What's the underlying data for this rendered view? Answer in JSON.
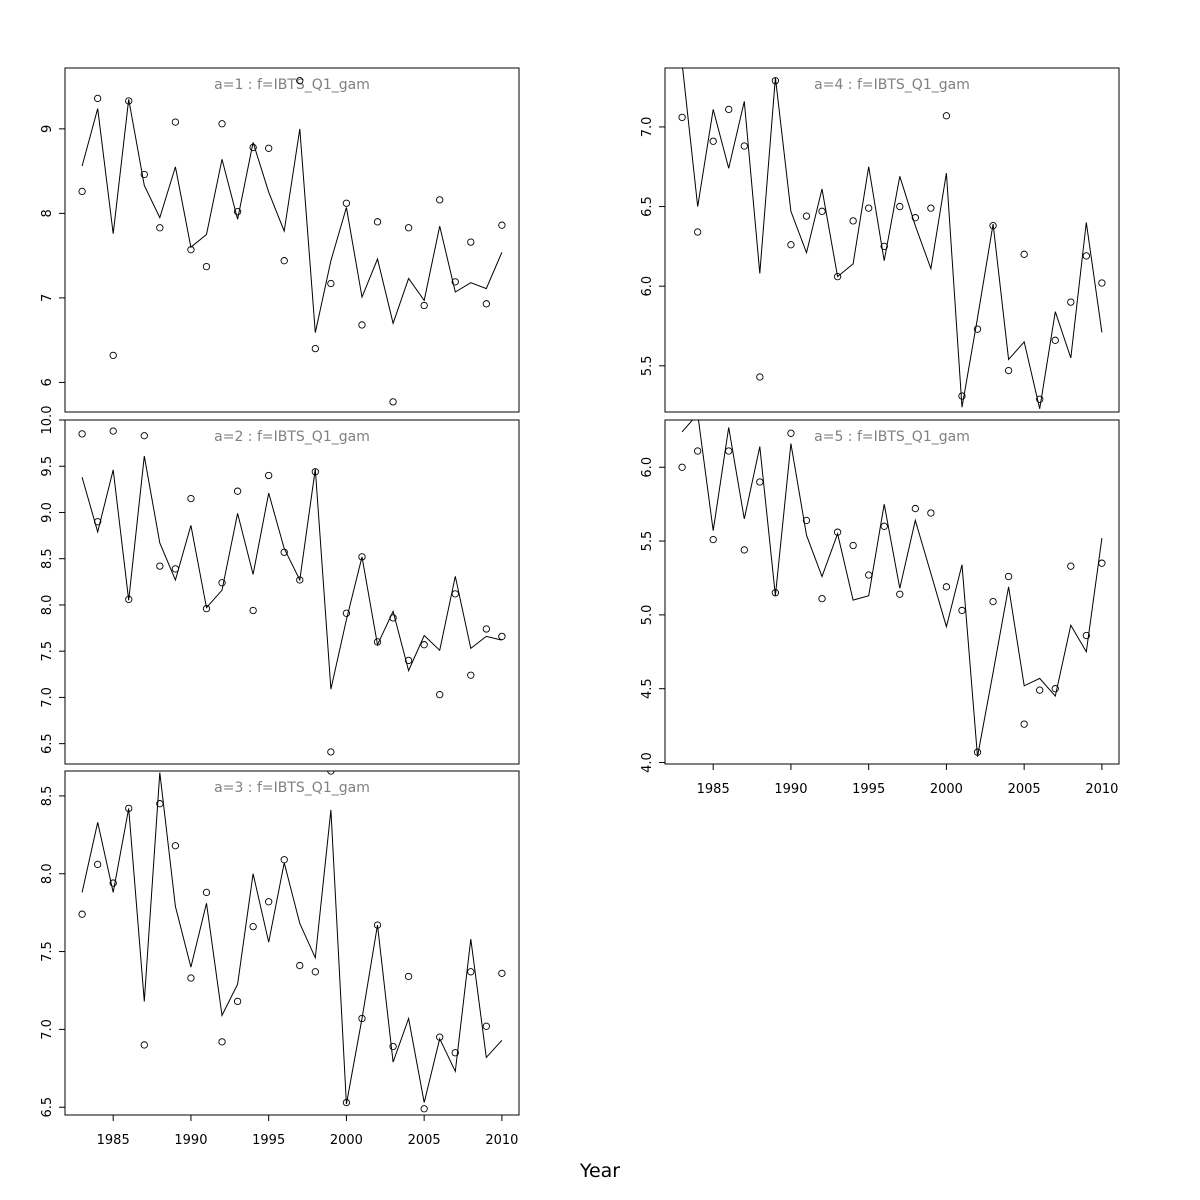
{
  "figure": {
    "xlabel": "Year",
    "background": "#ffffff",
    "panel_title_color": "#808080",
    "line_color": "#000000"
  },
  "chart_data": [
    {
      "type": "scatter",
      "panel": "a1",
      "title": "a=1 : f=IBTS_Q1_gam",
      "x": [
        1983,
        1984,
        1985,
        1986,
        1987,
        1988,
        1989,
        1990,
        1991,
        1992,
        1993,
        1994,
        1995,
        1996,
        1997,
        1998,
        1999,
        2000,
        2001,
        2002,
        2003,
        2004,
        2005,
        2006,
        2007,
        2008,
        2009,
        2010
      ],
      "series": [
        {
          "values": [
            8.26,
            9.36,
            6.32,
            9.33,
            8.46,
            7.83,
            9.08,
            7.57,
            7.37,
            9.06,
            8.02,
            8.78,
            8.77,
            7.44,
            9.57,
            6.4,
            7.17,
            8.12,
            6.68,
            7.9,
            5.77,
            7.83,
            6.91,
            8.16,
            7.19,
            7.66,
            6.93,
            7.86
          ]
        },
        {
          "values": [
            8.56,
            9.24,
            7.76,
            9.35,
            8.33,
            7.95,
            8.55,
            7.6,
            7.75,
            8.64,
            7.93,
            8.84,
            8.25,
            7.79,
            9.0,
            6.59,
            7.44,
            8.07,
            7.01,
            7.46,
            6.7,
            7.23,
            6.97,
            7.85,
            7.07,
            7.18,
            7.11,
            7.54
          ]
        }
      ],
      "ylim": [
        5.65,
        9.72
      ],
      "yticks": [
        6,
        7,
        8,
        9
      ],
      "show_xaxis": false
    },
    {
      "type": "scatter",
      "panel": "a2",
      "title": "a=2 : f=IBTS_Q1_gam",
      "x": [
        1983,
        1984,
        1985,
        1986,
        1987,
        1988,
        1989,
        1990,
        1991,
        1992,
        1993,
        1994,
        1995,
        1996,
        1997,
        1998,
        1999,
        2000,
        2001,
        2002,
        2003,
        2004,
        2005,
        2006,
        2007,
        2008,
        2009,
        2010
      ],
      "series": [
        {
          "values": [
            9.85,
            8.9,
            9.88,
            8.06,
            9.83,
            8.42,
            8.39,
            9.15,
            7.96,
            8.24,
            9.23,
            7.94,
            9.4,
            8.57,
            8.27,
            9.44,
            6.41,
            7.91,
            8.52,
            7.6,
            7.86,
            7.4,
            7.57,
            7.03,
            8.12,
            7.24,
            7.74,
            7.66
          ]
        },
        {
          "values": [
            9.38,
            8.79,
            9.46,
            8.05,
            9.61,
            8.67,
            8.27,
            8.86,
            7.97,
            8.16,
            8.99,
            8.33,
            9.21,
            8.61,
            8.27,
            9.47,
            7.09,
            7.84,
            8.52,
            7.57,
            7.93,
            7.29,
            7.67,
            7.51,
            8.31,
            7.53,
            7.66,
            7.62
          ]
        }
      ],
      "ylim": [
        6.28,
        10.0
      ],
      "yticks": [
        6.5,
        7.0,
        7.5,
        8.0,
        8.5,
        9.0,
        9.5,
        10.0
      ],
      "show_xaxis": false
    },
    {
      "type": "scatter",
      "panel": "a3",
      "title": "a=3 : f=IBTS_Q1_gam",
      "x": [
        1983,
        1984,
        1985,
        1986,
        1987,
        1988,
        1989,
        1990,
        1991,
        1992,
        1993,
        1994,
        1995,
        1996,
        1997,
        1998,
        1999,
        2000,
        2001,
        2002,
        2003,
        2004,
        2005,
        2006,
        2007,
        2008,
        2009,
        2010
      ],
      "series": [
        {
          "values": [
            7.74,
            8.06,
            7.94,
            8.42,
            6.9,
            8.45,
            8.18,
            7.33,
            7.88,
            6.92,
            7.18,
            7.66,
            7.82,
            8.09,
            7.41,
            7.37,
            8.66,
            6.53,
            7.07,
            7.67,
            6.89,
            7.34,
            6.49,
            6.95,
            6.85,
            7.37,
            7.02,
            7.36
          ]
        },
        {
          "values": [
            7.88,
            8.33,
            7.88,
            8.42,
            7.18,
            8.65,
            7.79,
            7.4,
            7.81,
            7.09,
            7.29,
            8.0,
            7.56,
            8.07,
            7.68,
            7.46,
            8.41,
            6.52,
            7.07,
            7.67,
            6.79,
            7.07,
            6.53,
            6.94,
            6.73,
            7.58,
            6.82,
            6.93
          ]
        }
      ],
      "ylim": [
        6.45,
        8.66
      ],
      "yticks": [
        6.5,
        7.0,
        7.5,
        8.0,
        8.5
      ],
      "xticks": [
        1985,
        1990,
        1995,
        2000,
        2005,
        2010
      ],
      "show_xaxis": true
    },
    {
      "type": "scatter",
      "panel": "a4",
      "title": "a=4 : f=IBTS_Q1_gam",
      "x": [
        1983,
        1984,
        1985,
        1986,
        1987,
        1988,
        1989,
        1990,
        1991,
        1992,
        1993,
        1994,
        1995,
        1996,
        1997,
        1998,
        1999,
        2000,
        2001,
        2002,
        2003,
        2004,
        2005,
        2006,
        2007,
        2008,
        2009,
        2010
      ],
      "series": [
        {
          "values": [
            7.06,
            6.34,
            6.91,
            7.11,
            6.88,
            5.43,
            7.29,
            6.26,
            6.44,
            6.47,
            6.06,
            6.41,
            6.49,
            6.25,
            6.5,
            6.43,
            6.49,
            7.07,
            5.31,
            5.73,
            6.38,
            5.47,
            6.2,
            5.29,
            5.66,
            5.9,
            6.19,
            6.02
          ]
        },
        {
          "values": [
            7.4,
            6.5,
            7.11,
            6.74,
            7.16,
            6.08,
            7.31,
            6.47,
            6.21,
            6.61,
            6.06,
            6.14,
            6.75,
            6.16,
            6.69,
            6.38,
            6.11,
            6.71,
            5.24,
            5.8,
            6.39,
            5.54,
            5.65,
            5.23,
            5.84,
            5.55,
            6.4,
            5.71
          ]
        }
      ],
      "ylim": [
        5.21,
        7.37
      ],
      "yticks": [
        5.5,
        6.0,
        6.5,
        7.0
      ],
      "show_xaxis": false
    },
    {
      "type": "scatter",
      "panel": "a5",
      "title": "a=5 : f=IBTS_Q1_gam",
      "x": [
        1983,
        1984,
        1985,
        1986,
        1987,
        1988,
        1989,
        1990,
        1991,
        1992,
        1993,
        1994,
        1995,
        1996,
        1997,
        1998,
        1999,
        2000,
        2001,
        2002,
        2003,
        2004,
        2005,
        2006,
        2007,
        2008,
        2009,
        2010
      ],
      "series": [
        {
          "values": [
            6.0,
            6.11,
            5.51,
            6.11,
            5.44,
            5.9,
            5.15,
            6.23,
            5.64,
            5.11,
            5.56,
            5.47,
            5.27,
            5.6,
            5.14,
            5.72,
            5.69,
            5.19,
            5.03,
            4.07,
            5.09,
            5.26,
            4.26,
            4.49,
            4.5,
            5.33,
            4.86,
            5.35
          ]
        },
        {
          "values": [
            6.24,
            6.36,
            5.57,
            6.27,
            5.65,
            6.14,
            5.13,
            6.16,
            5.54,
            5.26,
            5.55,
            5.1,
            5.13,
            5.75,
            5.18,
            5.64,
            5.28,
            4.92,
            5.34,
            4.04,
            4.61,
            5.19,
            4.52,
            4.57,
            4.45,
            4.93,
            4.75,
            5.52
          ]
        }
      ],
      "ylim": [
        3.99,
        6.32
      ],
      "yticks": [
        4.0,
        4.5,
        5.0,
        5.5,
        6.0
      ],
      "xticks": [
        1985,
        1990,
        1995,
        2000,
        2005,
        2010
      ],
      "show_xaxis": true
    }
  ]
}
